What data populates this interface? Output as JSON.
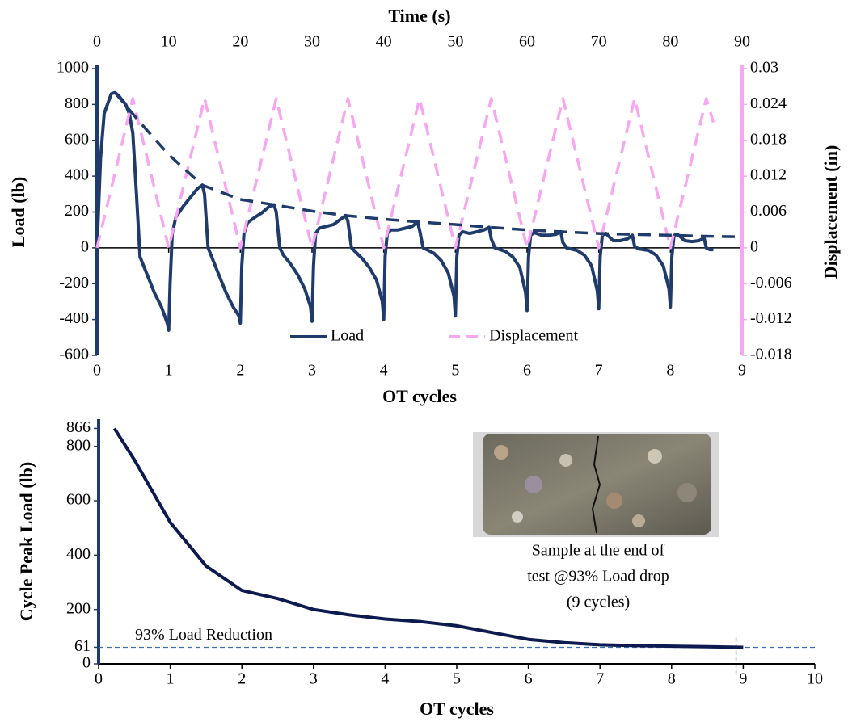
{
  "chart_data": [
    {
      "type": "line",
      "x_label": "OT cycles",
      "x2_label": "Time (s)",
      "y_label": "Load (lb)",
      "y2_label": "Displacement (in)",
      "xlim": [
        0,
        9
      ],
      "xticks": [
        0,
        1,
        2,
        3,
        4,
        5,
        6,
        7,
        8,
        9
      ],
      "x2lim": [
        0,
        90
      ],
      "x2ticks": [
        0,
        10,
        20,
        30,
        40,
        50,
        60,
        70,
        80,
        90
      ],
      "ylim": [
        -600,
        1000
      ],
      "yticks": [
        -600,
        -400,
        -200,
        0,
        200,
        400,
        600,
        800,
        1000
      ],
      "y2lim": [
        -0.018,
        0.03
      ],
      "y2ticks": [
        -0.018,
        -0.012,
        -0.006,
        0,
        0.006,
        0.012,
        0.018,
        0.024,
        0.03
      ],
      "legend": "bottom",
      "series": [
        {
          "name": "Load",
          "color": "#1f3b6b",
          "line_style": "solid",
          "x": [
            0,
            0.05,
            0.1,
            0.2,
            0.25,
            0.3,
            0.4,
            0.45,
            0.5,
            0.55,
            0.6,
            0.7,
            0.8,
            0.9,
            0.98,
            1.0,
            1.02,
            1.05,
            1.1,
            1.2,
            1.3,
            1.4,
            1.47,
            1.5,
            1.55,
            1.6,
            1.7,
            1.8,
            1.9,
            1.98,
            2.0,
            2.02,
            2.05,
            2.1,
            2.2,
            2.3,
            2.4,
            2.47,
            2.5,
            2.55,
            2.6,
            2.7,
            2.8,
            2.9,
            2.98,
            3.0,
            3.02,
            3.05,
            3.1,
            3.2,
            3.3,
            3.4,
            3.47,
            3.5,
            3.55,
            3.6,
            3.7,
            3.8,
            3.9,
            3.98,
            4.0,
            4.02,
            4.05,
            4.1,
            4.2,
            4.3,
            4.4,
            4.47,
            4.5,
            4.55,
            4.6,
            4.7,
            4.8,
            4.9,
            4.98,
            5.0,
            5.02,
            5.05,
            5.1,
            5.2,
            5.3,
            5.4,
            5.47,
            5.5,
            5.55,
            5.7,
            5.8,
            5.9,
            5.98,
            6.0,
            6.02,
            6.05,
            6.1,
            6.2,
            6.3,
            6.4,
            6.47,
            6.5,
            6.55,
            6.7,
            6.8,
            6.9,
            6.98,
            7.0,
            7.02,
            7.05,
            7.1,
            7.2,
            7.3,
            7.4,
            7.47,
            7.5,
            7.55,
            7.7,
            7.8,
            7.9,
            7.98,
            8.0,
            8.02,
            8.05,
            8.1,
            8.2,
            8.3,
            8.4,
            8.47,
            8.5,
            8.55,
            8.6
          ],
          "values": [
            0,
            500,
            750,
            860,
            866,
            850,
            800,
            750,
            640,
            300,
            -50,
            -150,
            -250,
            -330,
            -420,
            -460,
            -200,
            80,
            170,
            230,
            280,
            330,
            350,
            300,
            0,
            -50,
            -150,
            -250,
            -330,
            -380,
            -420,
            -100,
            80,
            140,
            170,
            195,
            230,
            240,
            200,
            0,
            -40,
            -90,
            -150,
            -230,
            -330,
            -410,
            -100,
            80,
            110,
            120,
            130,
            160,
            180,
            150,
            0,
            -20,
            -60,
            -110,
            -180,
            -300,
            -400,
            -50,
            80,
            100,
            100,
            110,
            120,
            145,
            100,
            0,
            -10,
            -30,
            -70,
            -140,
            -270,
            -380,
            -50,
            70,
            90,
            80,
            90,
            100,
            115,
            50,
            0,
            -20,
            -50,
            -110,
            -250,
            -350,
            -50,
            70,
            85,
            70,
            70,
            75,
            90,
            30,
            0,
            -15,
            -40,
            -100,
            -240,
            -340,
            -50,
            70,
            80,
            40,
            40,
            50,
            70,
            10,
            -5,
            -15,
            -40,
            -100,
            -230,
            -330,
            -50,
            70,
            75,
            40,
            35,
            40,
            55,
            0,
            -10,
            -10
          ]
        },
        {
          "name": "Displacement",
          "color": "#f7a6f2",
          "line_style": "dashed",
          "axis": "y2",
          "x": [
            0,
            0.5,
            1,
            1.5,
            2,
            2.5,
            3,
            3.5,
            4,
            4.5,
            5,
            5.5,
            6,
            6.5,
            7,
            7.5,
            8,
            8.5,
            8.6
          ],
          "values": [
            0,
            0.025,
            0,
            0.025,
            0,
            0.025,
            0,
            0.025,
            0,
            0.025,
            0,
            0.025,
            0,
            0.025,
            0,
            0.025,
            0,
            0.025,
            0.021
          ]
        },
        {
          "color": "#1f3b6b",
          "line_style": "dashed",
          "x": [
            0.25,
            0.6,
            1,
            1.47,
            2,
            2.47,
            3,
            3.47,
            4,
            4.47,
            5,
            5.47,
            6,
            6.47,
            7,
            7.47,
            8,
            8.47,
            8.9
          ],
          "values": [
            866,
            700,
            520,
            350,
            270,
            240,
            205,
            180,
            160,
            145,
            130,
            115,
            100,
            90,
            80,
            75,
            70,
            65,
            62
          ]
        }
      ]
    },
    {
      "type": "line",
      "x_label": "OT cycles",
      "y_label": "Cycle Peak Load (lb)",
      "xlim": [
        0,
        10
      ],
      "xticks": [
        0,
        1,
        2,
        3,
        4,
        5,
        6,
        7,
        8,
        9,
        10
      ],
      "ylim": [
        0,
        900
      ],
      "yticks": [
        0,
        61,
        200,
        400,
        600,
        800,
        866
      ],
      "series": [
        {
          "color": "#0d1a4f",
          "line_style": "solid",
          "x": [
            0.22,
            0.5,
            1,
            1.5,
            2,
            2.5,
            3,
            3.5,
            4,
            4.5,
            5,
            5.5,
            6,
            6.5,
            7,
            7.5,
            8,
            8.5,
            9
          ],
          "values": [
            866,
            750,
            520,
            360,
            270,
            240,
            200,
            180,
            165,
            155,
            140,
            115,
            90,
            78,
            70,
            67,
            65,
            63,
            61
          ]
        }
      ],
      "reference_line": {
        "value": 61,
        "label": "93% Load Reduction"
      },
      "marker_x": 8.9,
      "annotation": [
        "Sample at the end of",
        "test @93% Load drop",
        "(9 cycles)"
      ]
    }
  ]
}
